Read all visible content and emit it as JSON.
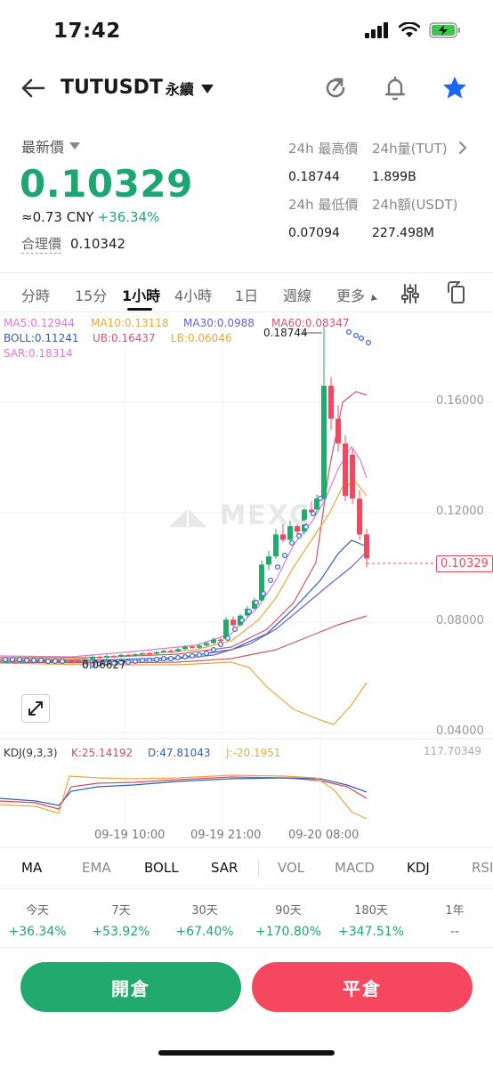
{
  "status": {
    "time": "17:42"
  },
  "nav": {
    "pair": "TUTUSDT",
    "type": "永續"
  },
  "ticker": {
    "last_label": "最新價",
    "last_price": "0.10329",
    "cny": "≈0.73 CNY",
    "change": "+36.34%",
    "fair_label": "合理價",
    "fair_value": "0.10342",
    "high_label": "24h 最高價",
    "high_value": "0.18744",
    "vol_label": "24h量(TUT)",
    "vol_value": "1.899B",
    "low_label": "24h 最低價",
    "low_value": "0.07094",
    "amt_label": "24h額(USDT)",
    "amt_value": "227.498M"
  },
  "timeframes": [
    "分時",
    "15分",
    "1小時",
    "4小時",
    "1日",
    "週線",
    "更多"
  ],
  "active_timeframe": "1小時",
  "chart": {
    "ma": {
      "ma5": "MA5:0.12944",
      "ma10": "MA10:0.13118",
      "ma30": "MA30:0.0988",
      "ma60": "MA60:0.08347"
    },
    "boll": {
      "boll": "BOLL:0.11241",
      "ub": "UB:0.16437",
      "lb": "LB:0.06046"
    },
    "sar": "SAR:0.18314",
    "high_marker": "0.18744",
    "low_marker": "0.06627",
    "watermark": "MEXC",
    "y_ticks": [
      "0.16000",
      "0.12000",
      "0.08000",
      "0.04000"
    ],
    "current_price_tag": "0.10329",
    "x_ticks": [
      "09-19 10:00",
      "09-19 21:00",
      "09-20 08:00"
    ],
    "kdj": {
      "label": "KDJ(9,3,3)",
      "k": "K:25.14192",
      "d": "D:47.81043",
      "j": "J:-20.1951",
      "max": "117.70349"
    },
    "colors": {
      "up": "#22aa6e",
      "down": "#f5485f",
      "ma5": "#d97bd6",
      "ma10": "#e8a93c",
      "ma30": "#6b5fd6",
      "ma60": "#d0566b",
      "boll": "#2d5fb8",
      "sar": "#3a6fc4"
    }
  },
  "indicators": [
    "MA",
    "EMA",
    "BOLL",
    "SAR",
    "VOL",
    "MACD",
    "KDJ",
    "RSI"
  ],
  "performance": [
    {
      "period": "今天",
      "value": "+36.34%"
    },
    {
      "period": "7天",
      "value": "+53.92%"
    },
    {
      "period": "30天",
      "value": "+67.40%"
    },
    {
      "period": "90天",
      "value": "+170.80%"
    },
    {
      "period": "180天",
      "value": "+347.51%"
    },
    {
      "period": "1年",
      "value": "--"
    }
  ],
  "actions": {
    "open": "開倉",
    "close": "平倉"
  }
}
